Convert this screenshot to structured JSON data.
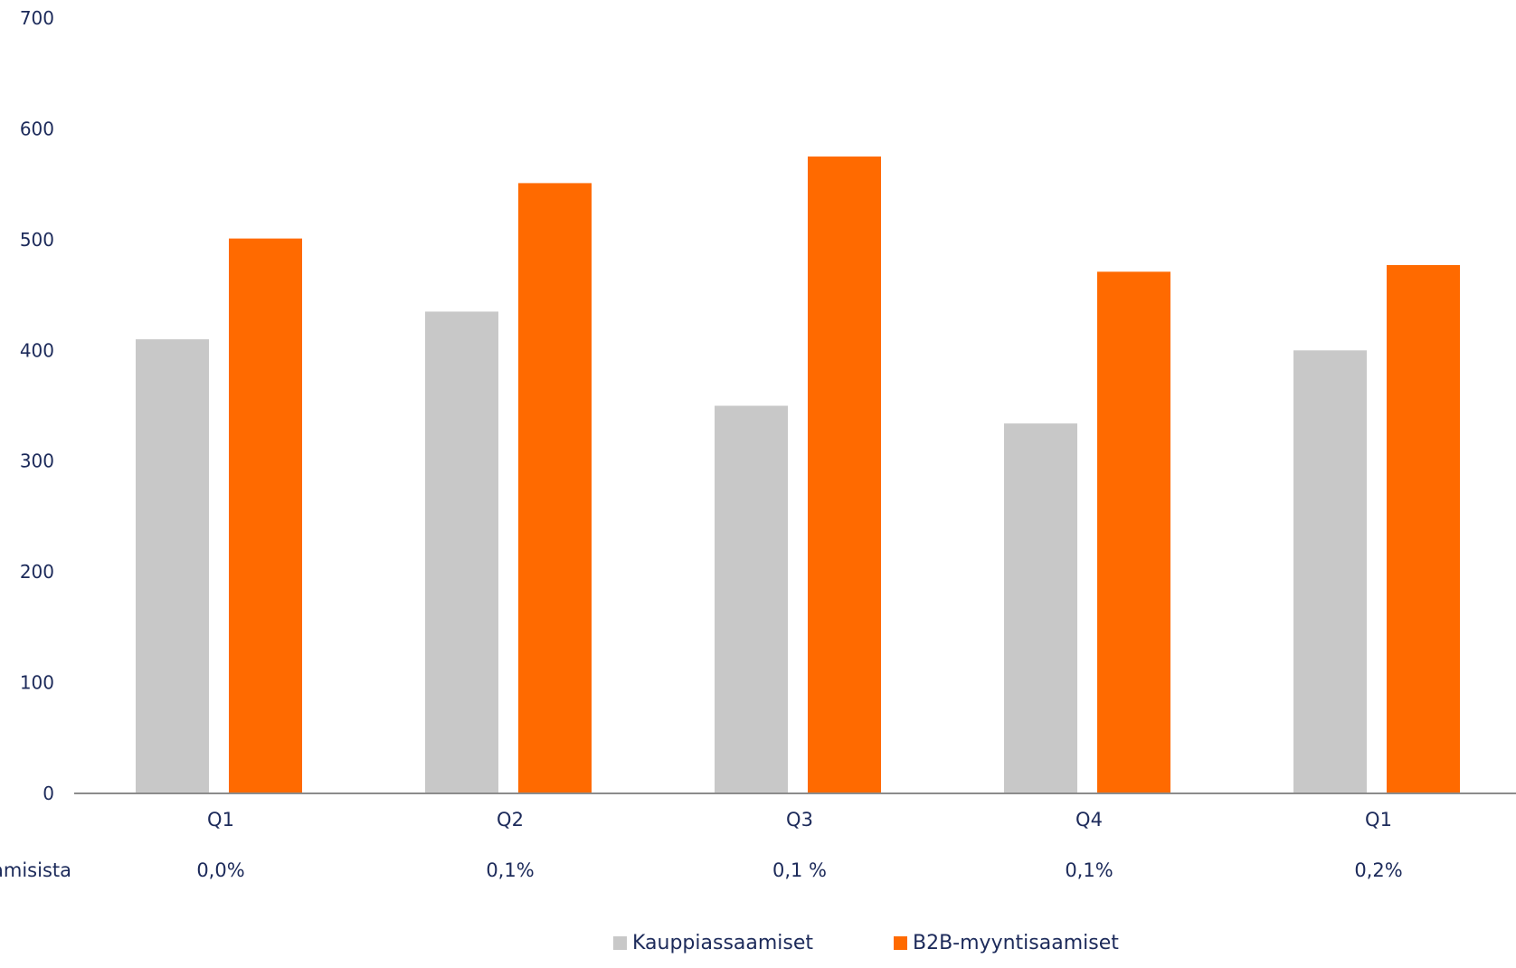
{
  "chart_data": {
    "type": "bar",
    "categories": [
      "Q1",
      "Q2",
      "Q3",
      "Q4",
      "Q1"
    ],
    "secondary_row": {
      "label": "amisista",
      "values": [
        "0,0%",
        "0,1%",
        "0,1 %",
        "0,1%",
        "0,2%"
      ]
    },
    "series": [
      {
        "name": "Kauppiassaamiset",
        "color": "#c8c8c8",
        "values": [
          410,
          435,
          350,
          334,
          400
        ]
      },
      {
        "name": "B2B-myyntisaamiset",
        "color": "#ff6a00",
        "values": [
          501,
          551,
          575,
          471,
          477
        ]
      }
    ],
    "yticks": [
      "0",
      "100",
      "200",
      "300",
      "400",
      "500",
      "600",
      "700"
    ],
    "ylim": [
      0,
      700
    ],
    "grid": false,
    "legend_position": "bottom-center"
  }
}
